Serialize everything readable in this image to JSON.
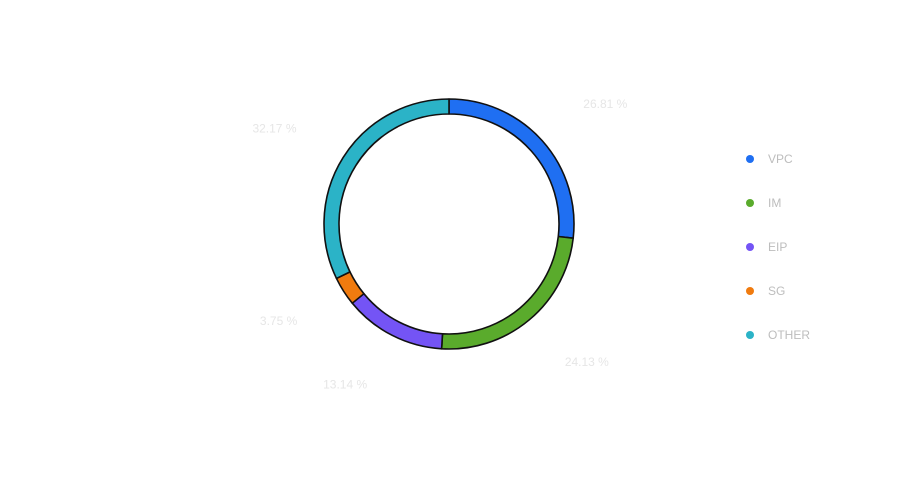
{
  "chart_data": {
    "type": "pie",
    "variant": "donut",
    "title": "",
    "categories": [
      "VPC",
      "IM",
      "EIP",
      "SG",
      "OTHER"
    ],
    "values": [
      26.81,
      24.13,
      13.14,
      3.75,
      32.17
    ],
    "value_labels": [
      "26.81 %",
      "24.13 %",
      "13.14 %",
      "3.75 %",
      "32.17 %"
    ],
    "colors": [
      "#1f6ff2",
      "#5aab2c",
      "#7454f5",
      "#f07b0f",
      "#2bb3c7"
    ],
    "start_angle_deg": 0,
    "direction": "clockwise",
    "legend_position": "right"
  }
}
